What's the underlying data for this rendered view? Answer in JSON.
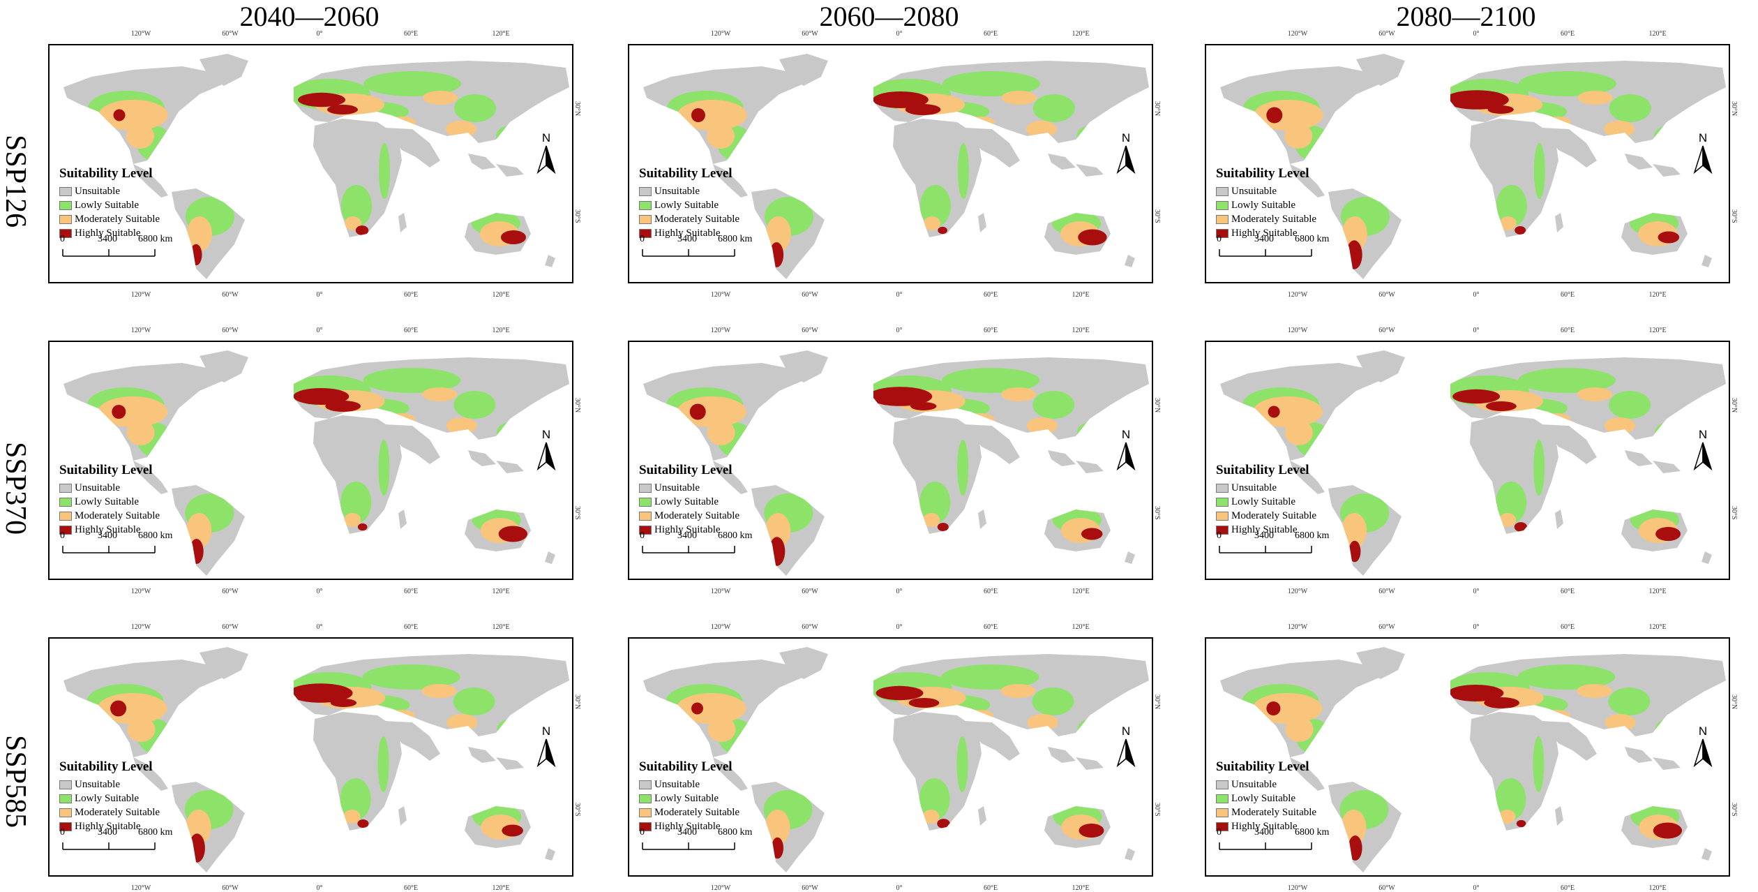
{
  "column_titles": [
    "2040—2060",
    "2060—2080",
    "2080—2100"
  ],
  "row_titles": [
    "SSP126",
    "SSP370",
    "SSP585"
  ],
  "legend": {
    "title": "Suitability Level",
    "items": [
      {
        "label": "Unsuitable",
        "color": "#c8c8c8"
      },
      {
        "label": "Lowly Suitable",
        "color": "#8de26a"
      },
      {
        "label": "Moderately Suitable",
        "color": "#f9c57c"
      },
      {
        "label": "Highly Suitable",
        "color": "#a90e0e"
      }
    ]
  },
  "scale": {
    "labels": [
      "0",
      "3400",
      "6800 km"
    ]
  },
  "north_label": "N",
  "lon_ticks": [
    "120°W",
    "60°W",
    "0°",
    "60°E",
    "120°E"
  ],
  "lat_ticks": [
    "30°N",
    "30°S"
  ],
  "colors": {
    "unsuitable": "#c8c8c8",
    "low": "#8de26a",
    "moderate": "#f9c57c",
    "high": "#a90e0e"
  }
}
